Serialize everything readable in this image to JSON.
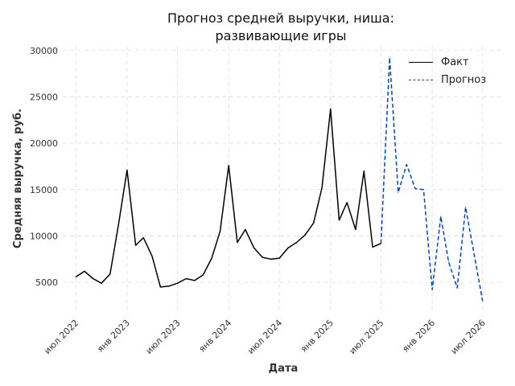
{
  "chart_data": {
    "type": "line",
    "title_line1": "Прогноз средней выручки, ниша:",
    "title_line2": "развивающие игры",
    "xlabel": "Дата",
    "ylabel": "Средняя выручка, руб.",
    "ylim": [
      1800,
      30500
    ],
    "yticks": [
      5000,
      10000,
      15000,
      20000,
      25000,
      30000
    ],
    "xlim": [
      "2022-05-15",
      "2026-09-15"
    ],
    "xticks": [
      {
        "date": "2022-07-01",
        "label": "июл 2022"
      },
      {
        "date": "2023-01-01",
        "label": "янв 2023"
      },
      {
        "date": "2023-07-01",
        "label": "июл 2023"
      },
      {
        "date": "2024-01-01",
        "label": "янв 2024"
      },
      {
        "date": "2024-07-01",
        "label": "июл 2024"
      },
      {
        "date": "2025-01-01",
        "label": "янв 2025"
      },
      {
        "date": "2025-07-01",
        "label": "июл 2025"
      },
      {
        "date": "2026-01-01",
        "label": "янв 2026"
      },
      {
        "date": "2026-07-01",
        "label": "июл 2026"
      }
    ],
    "grid": true,
    "legend_position": "top-right",
    "series": [
      {
        "name": "Факт",
        "color": "#000000",
        "style": "solid",
        "points": [
          [
            "2022-07-01",
            5600
          ],
          [
            "2022-08-01",
            6200
          ],
          [
            "2022-09-01",
            5400
          ],
          [
            "2022-10-01",
            4900
          ],
          [
            "2022-11-01",
            5900
          ],
          [
            "2022-12-01",
            11200
          ],
          [
            "2023-01-01",
            17100
          ],
          [
            "2023-02-01",
            9000
          ],
          [
            "2023-03-01",
            9800
          ],
          [
            "2023-04-01",
            7800
          ],
          [
            "2023-05-01",
            4500
          ],
          [
            "2023-06-01",
            4600
          ],
          [
            "2023-07-01",
            4900
          ],
          [
            "2023-08-01",
            5400
          ],
          [
            "2023-09-01",
            5200
          ],
          [
            "2023-10-01",
            5800
          ],
          [
            "2023-11-01",
            7600
          ],
          [
            "2023-12-01",
            10500
          ],
          [
            "2024-01-01",
            17600
          ],
          [
            "2024-02-01",
            9300
          ],
          [
            "2024-03-01",
            10700
          ],
          [
            "2024-04-01",
            8700
          ],
          [
            "2024-05-01",
            7700
          ],
          [
            "2024-06-01",
            7500
          ],
          [
            "2024-07-01",
            7600
          ],
          [
            "2024-08-01",
            8700
          ],
          [
            "2024-09-01",
            9300
          ],
          [
            "2024-10-01",
            10100
          ],
          [
            "2024-11-01",
            11400
          ],
          [
            "2024-12-01",
            15200
          ],
          [
            "2025-01-01",
            23700
          ],
          [
            "2025-02-01",
            11700
          ],
          [
            "2025-03-01",
            13600
          ],
          [
            "2025-04-01",
            10700
          ],
          [
            "2025-05-01",
            17000
          ],
          [
            "2025-06-01",
            8800
          ],
          [
            "2025-07-01",
            9200
          ]
        ]
      },
      {
        "name": "Прогноз",
        "color": "#0044cc",
        "style": "dashed",
        "points": [
          [
            "2025-07-01",
            9200
          ],
          [
            "2025-08-01",
            29200
          ],
          [
            "2025-09-01",
            14700
          ],
          [
            "2025-10-01",
            17700
          ],
          [
            "2025-11-01",
            15100
          ],
          [
            "2025-12-01",
            15000
          ],
          [
            "2026-01-01",
            4200
          ],
          [
            "2026-02-01",
            12100
          ],
          [
            "2026-03-01",
            7200
          ],
          [
            "2026-04-01",
            4400
          ],
          [
            "2026-05-01",
            13100
          ],
          [
            "2026-06-01",
            8000
          ],
          [
            "2026-07-01",
            3000
          ]
        ]
      }
    ]
  }
}
